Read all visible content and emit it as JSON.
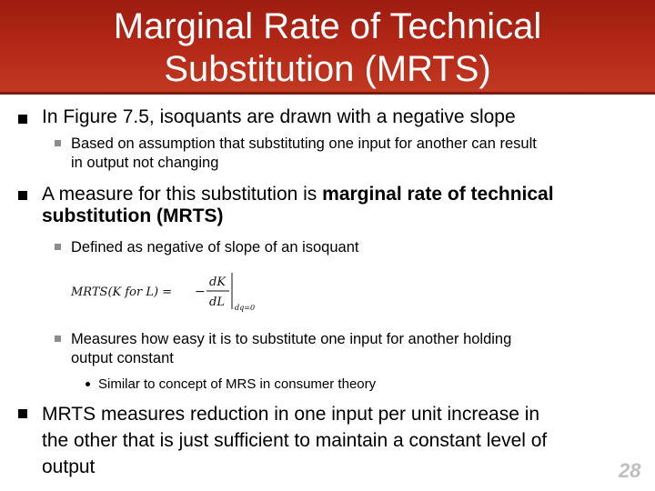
{
  "title": {
    "line1": "Marginal Rate of Technical",
    "line2": "Substitution (MRTS)"
  },
  "bullets": [
    {
      "text": "In Figure 7.5, isoquants are drawn with a negative slope",
      "sub": [
        {
          "line1": "Based on assumption that substituting one input for another can result",
          "line2": "in output not changing"
        }
      ]
    },
    {
      "text_plain": "A measure for this substitution is ",
      "text_bold_1": "marginal rate of technical",
      "text_bold_2": "substitution (MRTS)",
      "sub": [
        {
          "line1": "Defined as negative of slope of an isoquant"
        },
        {
          "line1": "Measures how easy it is to substitute one input for another holding",
          "line2": "output constant",
          "sub": [
            "Similar to concept of MRS in consumer theory"
          ]
        }
      ]
    },
    {
      "line1": "MRTS measures reduction in one input per unit increase in",
      "line2": "the other that is just sufficient to maintain a constant level of",
      "line3": "output"
    }
  ],
  "formula": {
    "lhs": "MRTS(K for L) =",
    "minus": "−",
    "numerator": "dK",
    "denominator": "dL",
    "subscript": "dq=0"
  },
  "page_number": "28"
}
